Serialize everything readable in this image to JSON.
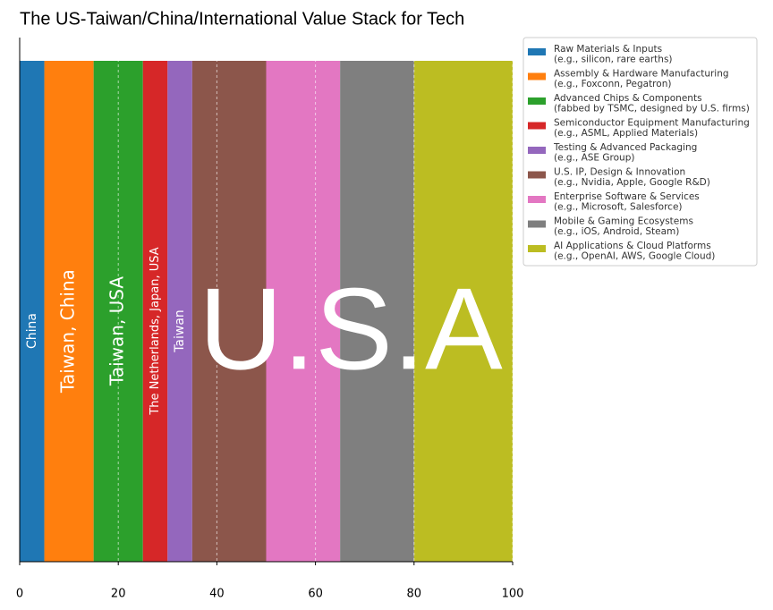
{
  "chart_data": {
    "type": "stacked_bar_horizontal",
    "title": "The US-Taiwan/China/International Value Stack for Tech",
    "annotation": "U.S.A",
    "xlim": [
      0,
      100
    ],
    "xticks": [
      0,
      20,
      40,
      60,
      80,
      100
    ],
    "grid": true,
    "legend": "upper right outside",
    "series": [
      {
        "name": "Raw Materials & Inputs",
        "detail": "(e.g., silicon, rare earths)",
        "color": "#1f77b4",
        "values": [
          5
        ],
        "label": "China"
      },
      {
        "name": "Assembly & Hardware Manufacturing",
        "detail": "(e.g., Foxconn, Pegatron)",
        "color": "#ff7f0e",
        "values": [
          10
        ],
        "label": "Taiwan, China"
      },
      {
        "name": "Advanced Chips & Components",
        "detail": "(fabbed by TSMC, designed by U.S. firms)",
        "color": "#2ca02c",
        "values": [
          10
        ],
        "label": "Taiwan, USA"
      },
      {
        "name": "Semiconductor Equipment Manufacturing",
        "detail": "(e.g., ASML, Applied Materials)",
        "color": "#d62728",
        "values": [
          5
        ],
        "label": "The Netherlands, Japan, USA"
      },
      {
        "name": "Testing & Advanced Packaging",
        "detail": "(e.g., ASE Group)",
        "color": "#9467bd",
        "values": [
          5
        ],
        "label": "Taiwan"
      },
      {
        "name": "U.S. IP, Design & Innovation",
        "detail": "(e.g., Nvidia, Apple, Google R&D)",
        "color": "#8c564b",
        "values": [
          15
        ]
      },
      {
        "name": "Enterprise Software & Services",
        "detail": "(e.g., Microsoft, Salesforce)",
        "color": "#e377c2",
        "values": [
          15
        ]
      },
      {
        "name": "Mobile & Gaming Ecosystems",
        "detail": "(e.g., iOS, Android, Steam)",
        "color": "#7f7f7f",
        "values": [
          15
        ]
      },
      {
        "name": "AI Applications & Cloud Platforms",
        "detail": "(e.g., OpenAI, AWS, Google Cloud)",
        "color": "#bcbd22",
        "values": [
          20
        ]
      }
    ]
  }
}
